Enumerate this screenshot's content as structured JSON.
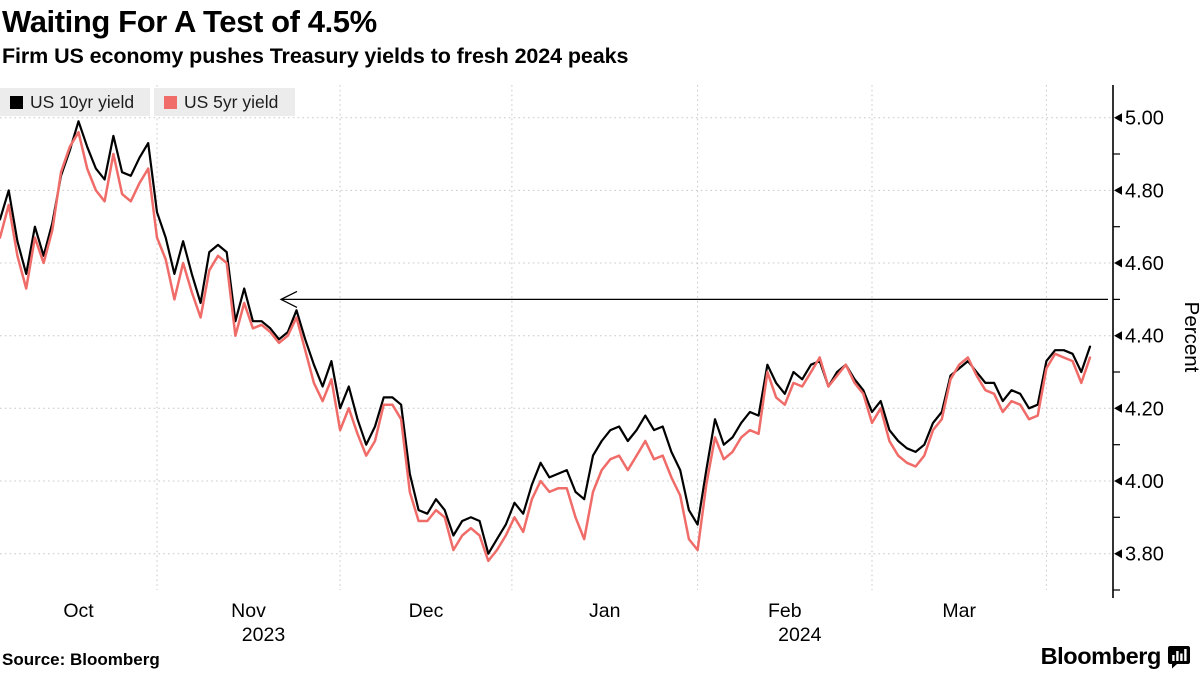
{
  "header": {
    "title": "Waiting For A Test of 4.5%",
    "subtitle": "Firm US economy pushes Treasury yields to fresh 2024 peaks"
  },
  "footer": {
    "source": "Source: Bloomberg",
    "brand": "Bloomberg"
  },
  "chart_data": {
    "type": "line",
    "title": "Waiting For A Test of 4.5%",
    "subtitle": "Firm US economy pushes Treasury yields to fresh 2024 peaks",
    "ylabel": "Percent",
    "ylim": [
      3.7,
      5.09
    ],
    "yticks": [
      "5.00",
      "4.80",
      "4.60",
      "4.40",
      "4.20",
      "4.00",
      "3.80"
    ],
    "ytick_values": [
      5.0,
      4.8,
      4.6,
      4.4,
      4.2,
      4.0,
      3.8
    ],
    "minor_tick_step": 0.1,
    "grid": "dotted",
    "legend_position": "top-left",
    "x_start_date": "2023-10-05",
    "x_end_date": "2024-04-08",
    "x_month_labels": [
      "Oct",
      "Nov",
      "Dec",
      "Jan",
      "Feb",
      "Mar"
    ],
    "month_gridline_indices": [
      18,
      39,
      58.7,
      80,
      100,
      120
    ],
    "year_labels": [
      {
        "text": "2023",
        "month_index": 1
      },
      {
        "text": "2024",
        "month_index": 4
      }
    ],
    "annotation_arrow": {
      "value": 4.5,
      "direction": "left"
    },
    "colors": {
      "grid": "#c8c8c8",
      "axis": "#000000",
      "arrow": "#000000"
    },
    "series": [
      {
        "name": "US 10yr yield",
        "color": "#000000",
        "values": [
          4.72,
          4.8,
          4.66,
          4.57,
          4.7,
          4.62,
          4.71,
          4.84,
          4.91,
          4.99,
          4.92,
          4.86,
          4.83,
          4.95,
          4.85,
          4.84,
          4.89,
          4.93,
          4.74,
          4.67,
          4.57,
          4.66,
          4.57,
          4.49,
          4.63,
          4.65,
          4.63,
          4.44,
          4.53,
          4.44,
          4.44,
          4.42,
          4.39,
          4.41,
          4.47,
          4.39,
          4.32,
          4.26,
          4.33,
          4.2,
          4.26,
          4.17,
          4.1,
          4.15,
          4.23,
          4.23,
          4.21,
          4.02,
          3.92,
          3.91,
          3.95,
          3.92,
          3.85,
          3.89,
          3.9,
          3.89,
          3.8,
          3.84,
          3.88,
          3.94,
          3.91,
          3.99,
          4.05,
          4.01,
          4.02,
          4.03,
          3.97,
          3.95,
          4.07,
          4.11,
          4.14,
          4.15,
          4.11,
          4.14,
          4.18,
          4.14,
          4.15,
          4.08,
          4.03,
          3.92,
          3.88,
          4.03,
          4.17,
          4.1,
          4.12,
          4.16,
          4.19,
          4.18,
          4.32,
          4.27,
          4.24,
          4.3,
          4.28,
          4.32,
          4.33,
          4.26,
          4.3,
          4.32,
          4.28,
          4.25,
          4.19,
          4.22,
          4.14,
          4.11,
          4.09,
          4.08,
          4.1,
          4.16,
          4.19,
          4.29,
          4.31,
          4.33,
          4.3,
          4.27,
          4.27,
          4.22,
          4.25,
          4.24,
          4.2,
          4.21,
          4.33,
          4.36,
          4.36,
          4.35,
          4.3,
          4.37
        ]
      },
      {
        "name": "US 5yr yield",
        "color": "#ef6c69",
        "values": [
          4.67,
          4.76,
          4.62,
          4.53,
          4.67,
          4.6,
          4.69,
          4.85,
          4.92,
          4.96,
          4.86,
          4.8,
          4.77,
          4.9,
          4.79,
          4.77,
          4.82,
          4.86,
          4.67,
          4.61,
          4.5,
          4.6,
          4.52,
          4.45,
          4.58,
          4.62,
          4.6,
          4.4,
          4.49,
          4.42,
          4.43,
          4.41,
          4.38,
          4.4,
          4.45,
          4.36,
          4.27,
          4.22,
          4.28,
          4.14,
          4.2,
          4.13,
          4.07,
          4.11,
          4.21,
          4.21,
          4.17,
          3.97,
          3.89,
          3.89,
          3.92,
          3.9,
          3.81,
          3.85,
          3.87,
          3.85,
          3.78,
          3.81,
          3.85,
          3.9,
          3.86,
          3.95,
          4.0,
          3.97,
          3.98,
          3.98,
          3.9,
          3.84,
          3.97,
          4.03,
          4.06,
          4.07,
          4.03,
          4.07,
          4.11,
          4.06,
          4.07,
          4.01,
          3.96,
          3.84,
          3.81,
          3.99,
          4.12,
          4.06,
          4.08,
          4.12,
          4.14,
          4.13,
          4.3,
          4.23,
          4.21,
          4.27,
          4.26,
          4.3,
          4.34,
          4.26,
          4.29,
          4.32,
          4.27,
          4.24,
          4.16,
          4.2,
          4.11,
          4.07,
          4.05,
          4.04,
          4.07,
          4.14,
          4.17,
          4.28,
          4.32,
          4.34,
          4.29,
          4.25,
          4.24,
          4.19,
          4.22,
          4.21,
          4.17,
          4.18,
          4.31,
          4.35,
          4.34,
          4.33,
          4.27,
          4.34
        ]
      }
    ],
    "source": "Source: Bloomberg"
  }
}
